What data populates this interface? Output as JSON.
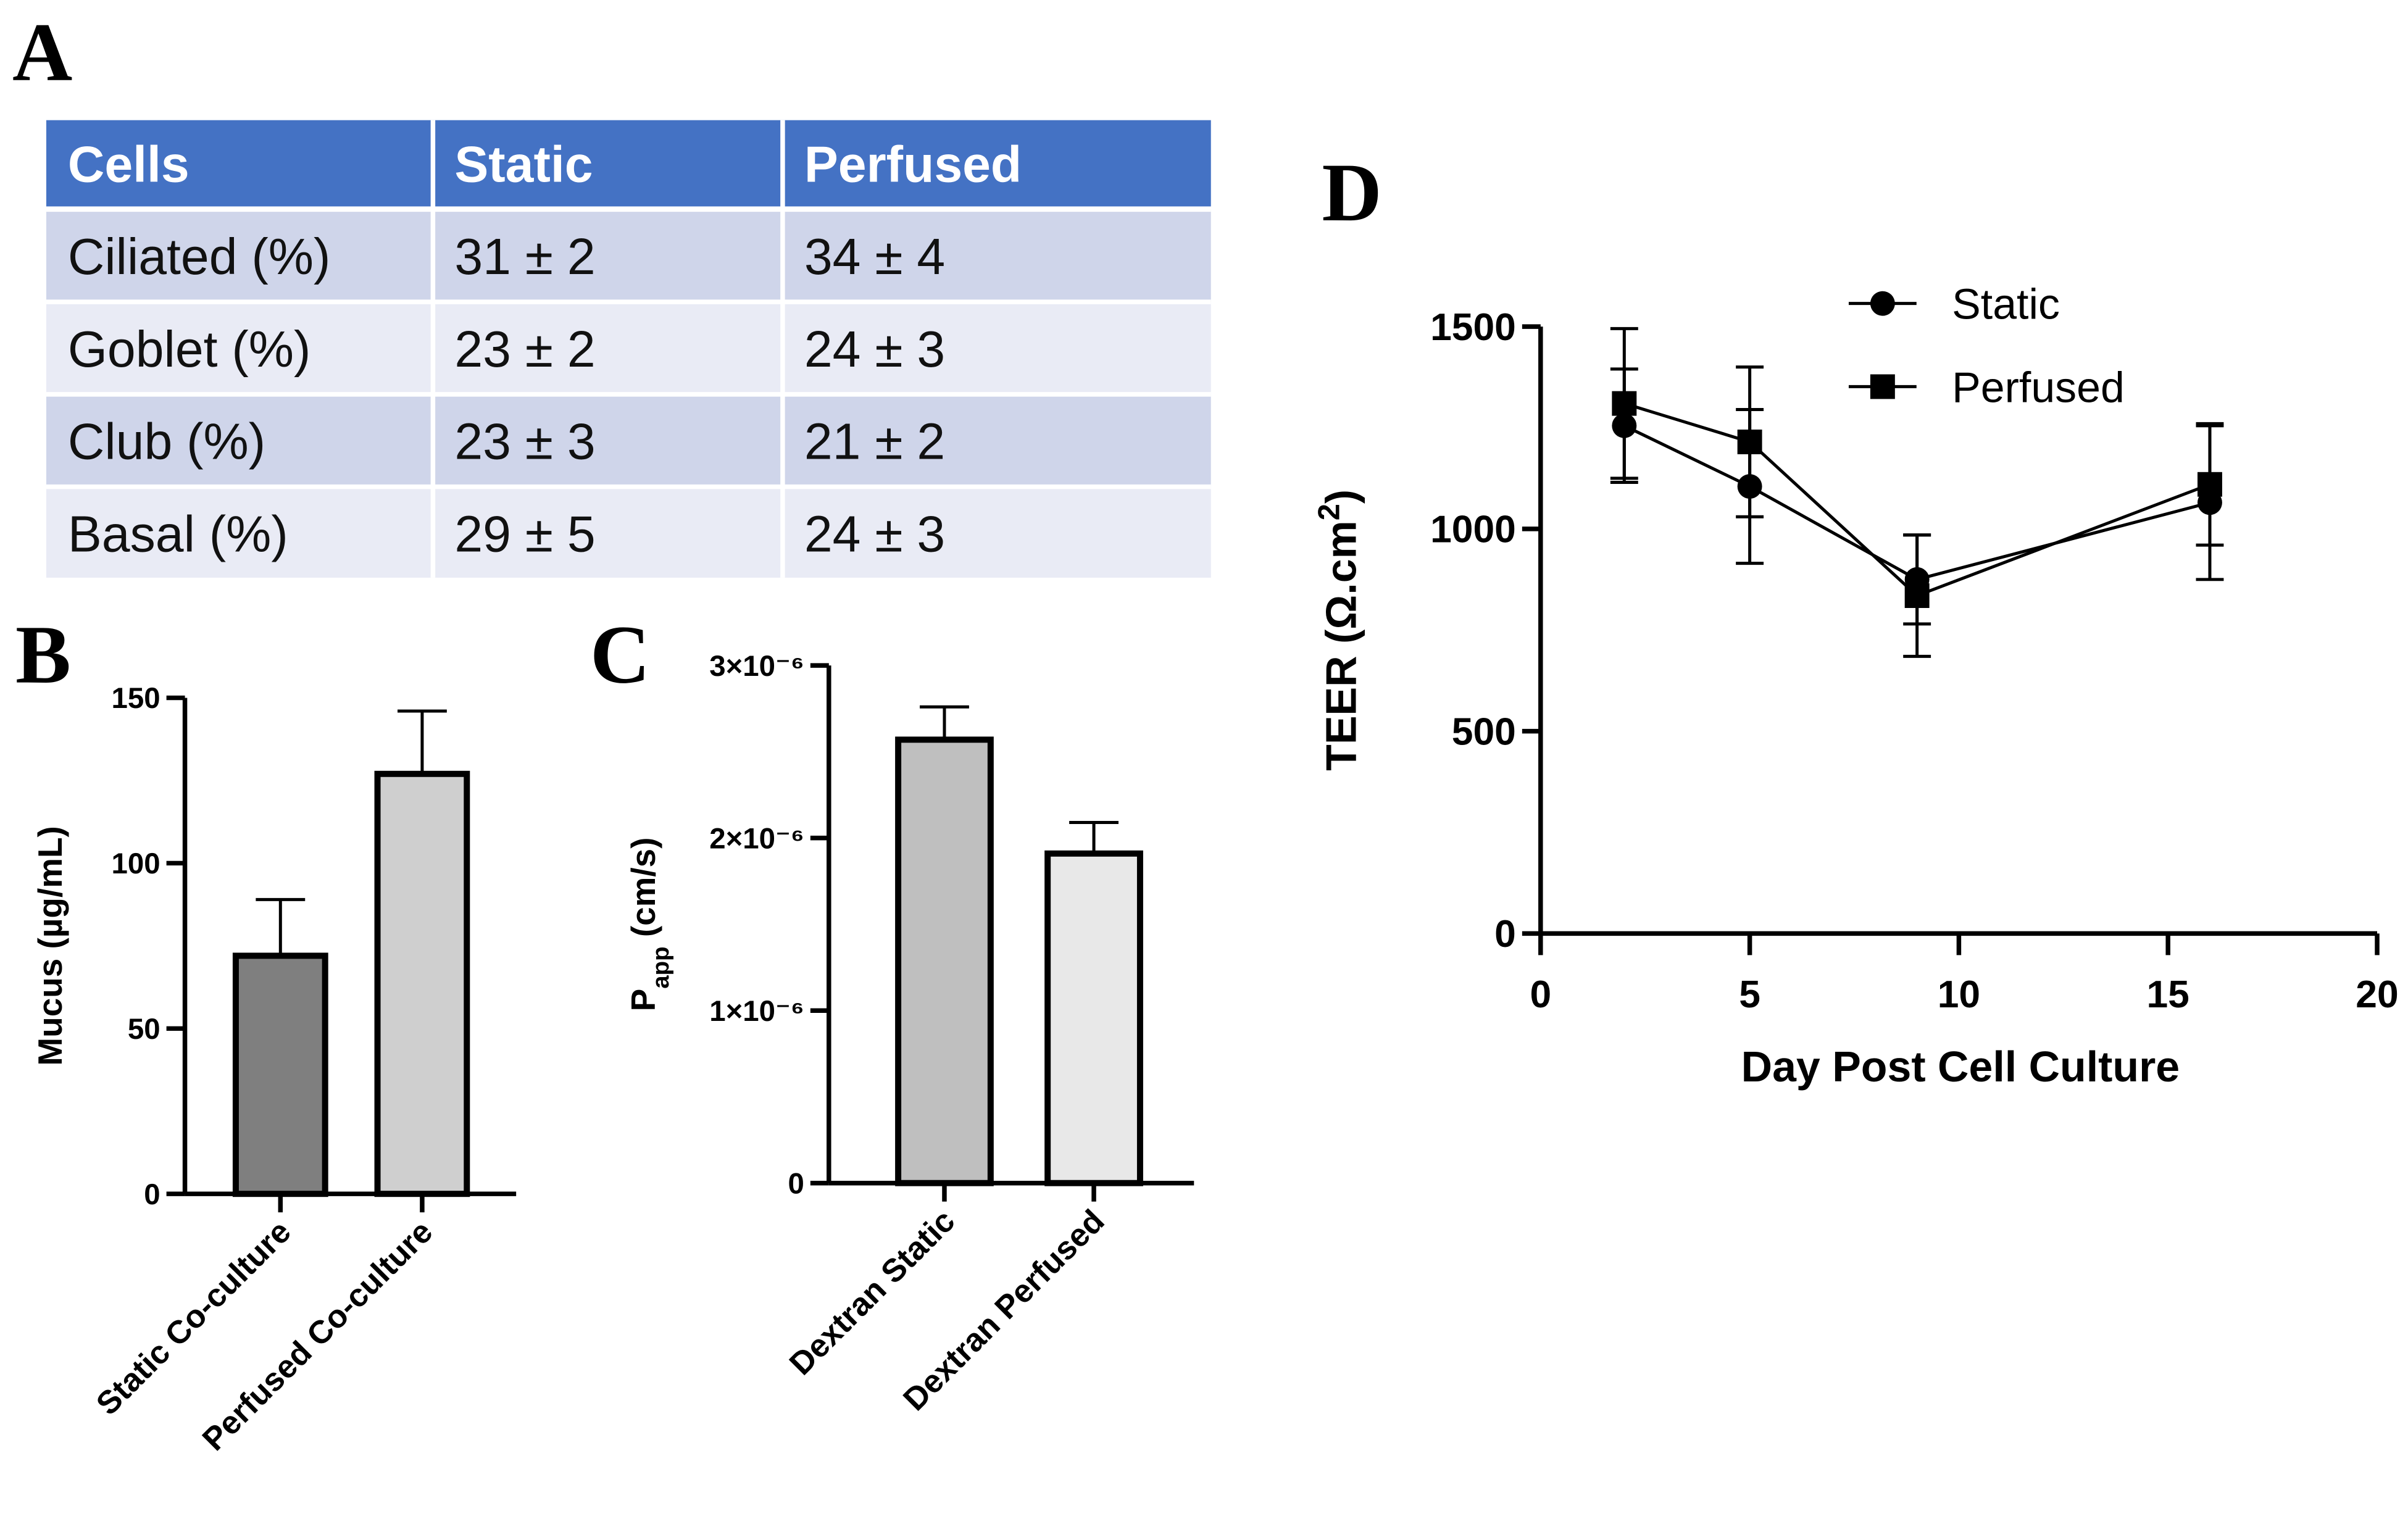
{
  "table": {
    "panel_label": "A",
    "header": [
      "Cells",
      "Static",
      "Perfused"
    ],
    "rows": [
      [
        "Ciliated (%)",
        "31 ± 2",
        "34 ± 4"
      ],
      [
        "Goblet (%)",
        "23 ± 2",
        "24 ± 3"
      ],
      [
        "Club (%)",
        "23 ± 3",
        "21 ± 2"
      ],
      [
        "Basal (%)",
        "29 ± 5",
        "24 ± 3"
      ]
    ]
  },
  "chart_data": [
    {
      "type": "bar",
      "panel_label": "B",
      "y_label": {
        "text": "Mucus (µg/mL)"
      },
      "categories": [
        "Static Co-culture",
        "Perfused Co-culture"
      ],
      "values": [
        72,
        127
      ],
      "errors": [
        17,
        19
      ],
      "colors": [
        "#7f7f7f",
        "#cfcfcf"
      ],
      "ylim": [
        0,
        150
      ],
      "yticks": [
        0,
        50,
        100,
        150
      ]
    },
    {
      "type": "bar",
      "panel_label": "C",
      "y_label": {
        "text": "P",
        "subscript": "app",
        "unit": " (cm/s)"
      },
      "categories": [
        "Dextran Static",
        "Dextran Perfused"
      ],
      "values": [
        2.57e-06,
        1.91e-06
      ],
      "errors": [
        1.9e-07,
        1.8e-07
      ],
      "colors": [
        "#bfbfbf",
        "#e8e8e8"
      ],
      "ylim": [
        0,
        3e-06
      ],
      "yticks": [
        0,
        {
          "value": 1e-06,
          "label": "1×10⁻⁶"
        },
        {
          "value": 2e-06,
          "label": "2×10⁻⁶"
        },
        {
          "value": 3e-06,
          "label": "3×10⁻⁶"
        }
      ]
    },
    {
      "type": "line",
      "panel_label": "D",
      "x_label": "Day Post Cell Culture",
      "y_label": {
        "text": "TEER (Ω.cm",
        "superscript": "2",
        "unit": ")"
      },
      "x": [
        2,
        5,
        9,
        16
      ],
      "series": [
        {
          "name": "Static",
          "color": "#000000",
          "marker": "circle",
          "values": [
            1255,
            1105,
            875,
            1065
          ],
          "errors": [
            140,
            190,
            110,
            190
          ]
        },
        {
          "name": "Perfused",
          "color": "#000000",
          "marker": "square",
          "values": [
            1310,
            1215,
            835,
            1110
          ],
          "errors": [
            185,
            185,
            150,
            150
          ]
        }
      ],
      "xlim": [
        0,
        20
      ],
      "xticks": [
        0,
        5,
        10,
        15,
        20
      ],
      "ylim": [
        0,
        1500
      ],
      "yticks": [
        0,
        500,
        1000,
        1500
      ]
    }
  ]
}
